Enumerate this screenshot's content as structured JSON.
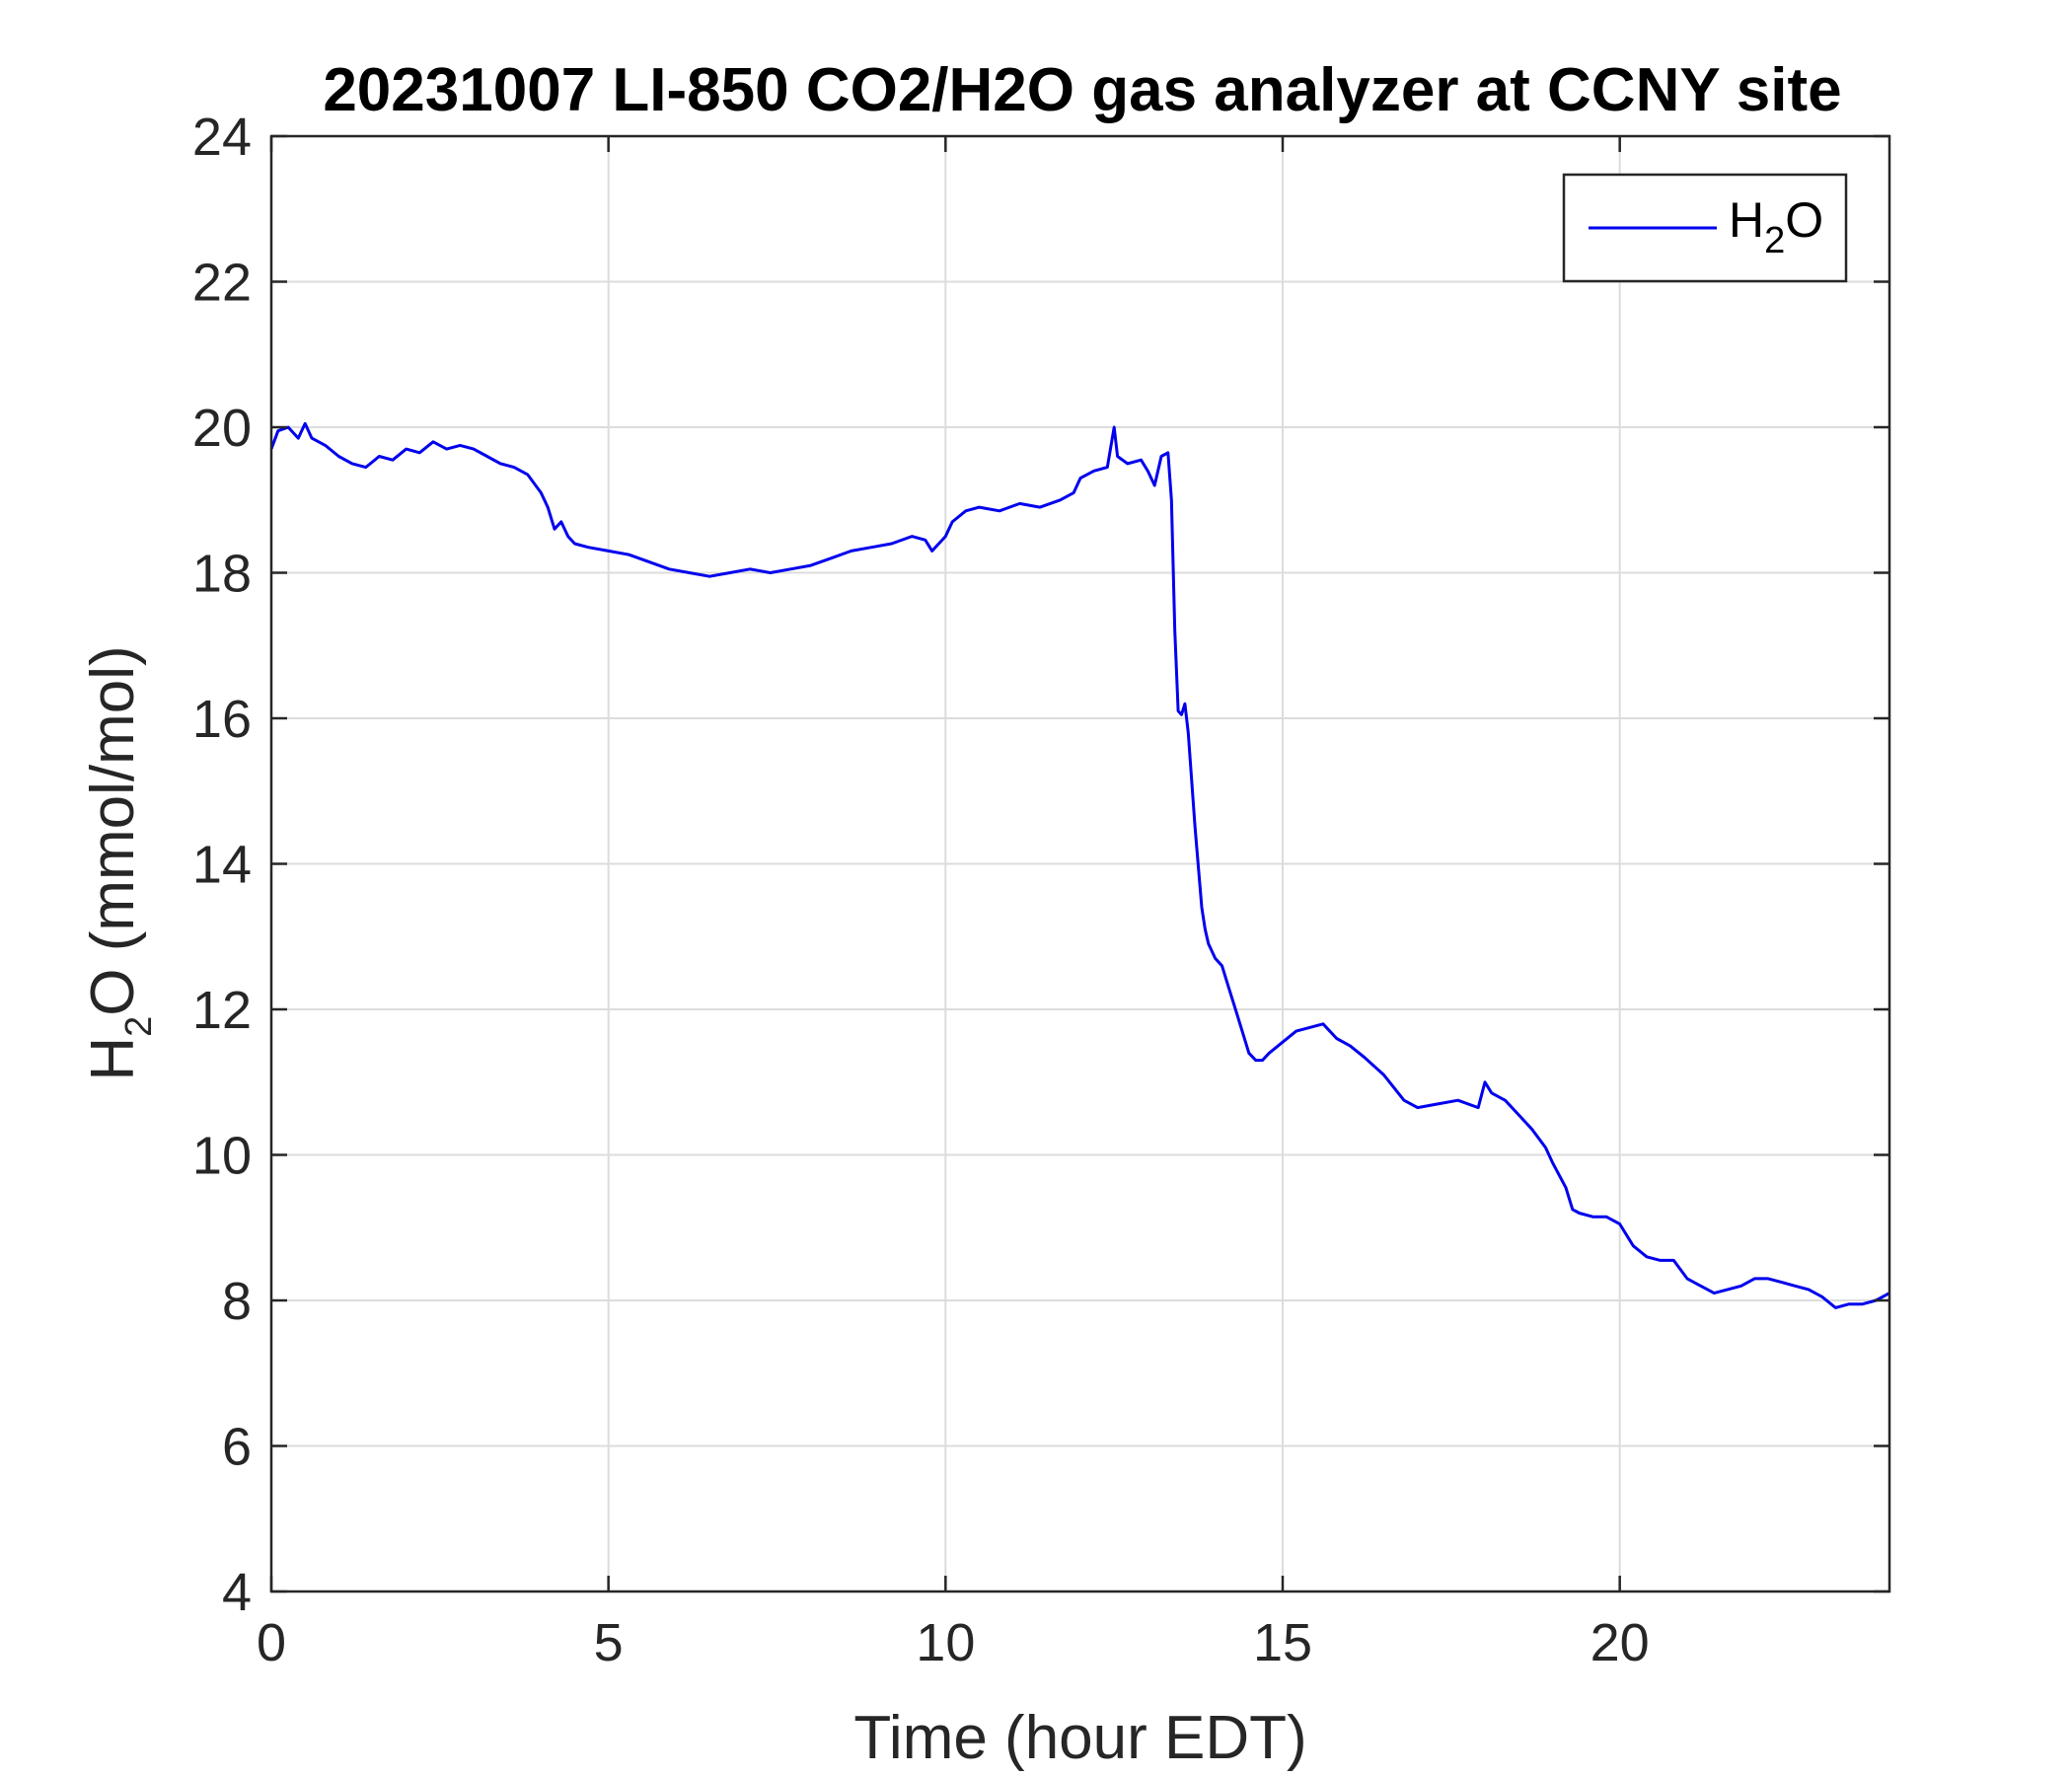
{
  "chart_data": {
    "type": "line",
    "title": "20231007 LI-850 CO2/H2O gas analyzer at CCNY site",
    "xlabel": "Time (hour EDT)",
    "ylabel": {
      "base": "H",
      "sub": "2",
      "rest": "O (mmol/mol)"
    },
    "xlim": [
      0,
      24
    ],
    "ylim": [
      4,
      24
    ],
    "xticks": [
      0,
      5,
      10,
      15,
      20
    ],
    "yticks": [
      4,
      6,
      8,
      10,
      12,
      14,
      16,
      18,
      20,
      22,
      24
    ],
    "grid": true,
    "legend_position": "top-right",
    "colors": {
      "series": "#0000ee",
      "axis": "#262626",
      "grid": "#dcdcdc"
    },
    "series": [
      {
        "name": {
          "base": "H",
          "sub": "2",
          "rest": "O"
        },
        "x": [
          0,
          0.1,
          0.25,
          0.4,
          0.5,
          0.6,
          0.8,
          1.0,
          1.2,
          1.4,
          1.6,
          1.8,
          2.0,
          2.2,
          2.4,
          2.6,
          2.8,
          3.0,
          3.2,
          3.4,
          3.6,
          3.8,
          4.0,
          4.1,
          4.2,
          4.3,
          4.4,
          4.5,
          4.7,
          5.0,
          5.3,
          5.6,
          5.9,
          6.2,
          6.5,
          6.8,
          7.1,
          7.4,
          7.7,
          8.0,
          8.3,
          8.6,
          8.9,
          9.2,
          9.5,
          9.7,
          9.8,
          10.0,
          10.1,
          10.3,
          10.5,
          10.8,
          11.1,
          11.4,
          11.7,
          11.9,
          12.0,
          12.2,
          12.4,
          12.5,
          12.55,
          12.7,
          12.9,
          13.0,
          13.1,
          13.2,
          13.3,
          13.35,
          13.4,
          13.45,
          13.5,
          13.55,
          13.6,
          13.7,
          13.8,
          13.85,
          13.9,
          14.0,
          14.1,
          14.2,
          14.3,
          14.4,
          14.5,
          14.6,
          14.7,
          14.8,
          15.0,
          15.2,
          15.4,
          15.6,
          15.8,
          16.0,
          16.2,
          16.5,
          16.8,
          17.0,
          17.3,
          17.6,
          17.9,
          18.0,
          18.1,
          18.3,
          18.5,
          18.7,
          18.9,
          19.0,
          19.2,
          19.3,
          19.4,
          19.6,
          19.8,
          20.0,
          20.2,
          20.4,
          20.6,
          20.8,
          21.0,
          21.2,
          21.4,
          21.6,
          21.8,
          22.0,
          22.2,
          22.4,
          22.6,
          22.8,
          23.0,
          23.2,
          23.4,
          23.6,
          23.8,
          24.0
        ],
        "values": [
          19.7,
          19.95,
          20.0,
          19.85,
          20.05,
          19.85,
          19.75,
          19.6,
          19.5,
          19.45,
          19.6,
          19.55,
          19.7,
          19.65,
          19.8,
          19.7,
          19.75,
          19.7,
          19.6,
          19.5,
          19.45,
          19.35,
          19.1,
          18.9,
          18.6,
          18.7,
          18.5,
          18.4,
          18.35,
          18.3,
          18.25,
          18.15,
          18.05,
          18.0,
          17.95,
          18.0,
          18.05,
          18.0,
          18.05,
          18.1,
          18.2,
          18.3,
          18.35,
          18.4,
          18.5,
          18.45,
          18.3,
          18.5,
          18.7,
          18.85,
          18.9,
          18.85,
          18.95,
          18.9,
          19.0,
          19.1,
          19.3,
          19.4,
          19.45,
          20.0,
          19.6,
          19.5,
          19.55,
          19.4,
          19.2,
          19.6,
          19.65,
          19.0,
          17.2,
          16.1,
          16.05,
          16.2,
          15.8,
          14.5,
          13.4,
          13.1,
          12.9,
          12.7,
          12.6,
          12.3,
          12.0,
          11.7,
          11.4,
          11.3,
          11.3,
          11.4,
          11.55,
          11.7,
          11.75,
          11.8,
          11.6,
          11.5,
          11.35,
          11.1,
          10.75,
          10.65,
          10.7,
          10.75,
          10.65,
          11.0,
          10.85,
          10.75,
          10.55,
          10.35,
          10.1,
          9.9,
          9.55,
          9.25,
          9.2,
          9.15,
          9.15,
          9.05,
          8.75,
          8.6,
          8.55,
          8.55,
          8.3,
          8.2,
          8.1,
          8.15,
          8.2,
          8.3,
          8.3,
          8.25,
          8.2,
          8.15,
          8.05,
          7.9,
          7.95,
          7.95,
          8.0,
          8.1
        ]
      }
    ]
  }
}
